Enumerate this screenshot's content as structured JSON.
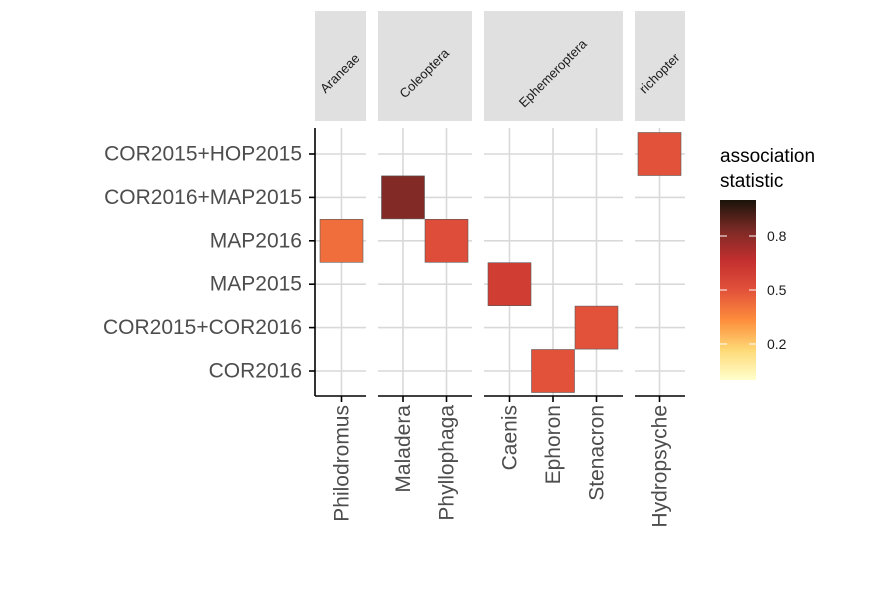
{
  "chart_data": {
    "type": "heatmap",
    "facets": [
      {
        "name": "Araneae",
        "genera": [
          "Philodromus"
        ]
      },
      {
        "name": "Coleoptera",
        "genera": [
          "Maladera",
          "Phyllophaga"
        ]
      },
      {
        "name": "Ephemeroptera",
        "genera": [
          "Caenis",
          "Ephoron",
          "Stenacron"
        ]
      },
      {
        "name": "Trichoptera",
        "genera": [
          "Hydropsyche"
        ]
      }
    ],
    "y_categories": [
      "COR2015+HOP2015",
      "COR2016+MAP2015",
      "MAP2016",
      "MAP2015",
      "COR2015+COR2016",
      "COR2016"
    ],
    "cells": [
      {
        "genus": "Philodromus",
        "group": "MAP2016",
        "value": 0.42
      },
      {
        "genus": "Maladera",
        "group": "COR2016+MAP2015",
        "value": 0.82
      },
      {
        "genus": "Phyllophaga",
        "group": "MAP2016",
        "value": 0.52
      },
      {
        "genus": "Caenis",
        "group": "MAP2015",
        "value": 0.6
      },
      {
        "genus": "Ephoron",
        "group": "COR2016",
        "value": 0.5
      },
      {
        "genus": "Stenacron",
        "group": "COR2015+COR2016",
        "value": 0.5
      },
      {
        "genus": "Hydropsyche",
        "group": "COR2015+HOP2015",
        "value": 0.5
      }
    ],
    "legend": {
      "title_lines": [
        "association",
        "statistic"
      ],
      "ticks": [
        0.2,
        0.5,
        0.8
      ],
      "range": [
        0,
        1
      ],
      "position": "right"
    },
    "colors": {
      "scale": [
        "#ffffcc",
        "#fed976",
        "#fd8d3c",
        "#e2513a",
        "#c22f2f",
        "#7b2a25",
        "#1a1309"
      ],
      "grid": "#d9d9d9",
      "strip": "#e0e0e0"
    },
    "grid": true
  }
}
